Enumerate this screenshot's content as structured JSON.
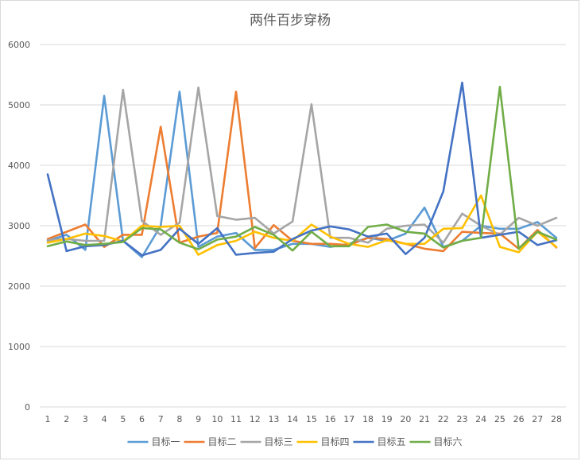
{
  "chart_data": {
    "type": "line",
    "title": "两件百步穿杨",
    "xlabel": "",
    "ylabel": "",
    "x": [
      1,
      2,
      3,
      4,
      5,
      6,
      7,
      8,
      9,
      10,
      11,
      12,
      13,
      14,
      15,
      16,
      17,
      18,
      19,
      20,
      21,
      22,
      23,
      24,
      25,
      26,
      27,
      28
    ],
    "ylim": [
      0,
      6000
    ],
    "yticks": [
      0,
      1000,
      2000,
      3000,
      4000,
      5000,
      6000
    ],
    "grid": true,
    "legend": "bottom",
    "series": [
      {
        "name": "目标一",
        "color": "#5B9BD5",
        "values": [
          2750,
          2850,
          2600,
          5150,
          2750,
          2480,
          3000,
          5220,
          2650,
          2820,
          2880,
          2600,
          2600,
          2700,
          2700,
          2650,
          2700,
          2800,
          2750,
          2870,
          3300,
          2650,
          2750,
          3000,
          2950,
          2950,
          3060,
          2800
        ]
      },
      {
        "name": "目标二",
        "color": "#ED7D31",
        "values": [
          2780,
          2900,
          3020,
          2650,
          2850,
          2850,
          4640,
          2720,
          2820,
          2880,
          5220,
          2630,
          3010,
          2750,
          2700,
          2700,
          2680,
          2800,
          2780,
          2700,
          2620,
          2580,
          2900,
          2880,
          2870,
          2620,
          2930,
          2640
        ]
      },
      {
        "name": "目标三",
        "color": "#A5A5A5",
        "values": [
          2760,
          2780,
          2750,
          2750,
          5250,
          3080,
          2850,
          3050,
          5290,
          3160,
          3100,
          3130,
          2870,
          3070,
          5010,
          2800,
          2800,
          2720,
          2950,
          3000,
          3020,
          2720,
          3200,
          3000,
          2850,
          3130,
          3000,
          3130
        ]
      },
      {
        "name": "目标四",
        "color": "#FFC000",
        "values": [
          2720,
          2780,
          2870,
          2830,
          2740,
          3000,
          2980,
          3000,
          2520,
          2680,
          2750,
          2900,
          2800,
          2750,
          3020,
          2820,
          2700,
          2650,
          2760,
          2700,
          2700,
          2950,
          2960,
          3500,
          2650,
          2560,
          2900,
          2650
        ]
      },
      {
        "name": "目标五",
        "color": "#4472C4",
        "values": [
          3850,
          2580,
          2660,
          2680,
          2750,
          2510,
          2600,
          2950,
          2700,
          2960,
          2520,
          2550,
          2570,
          2780,
          2920,
          2990,
          2940,
          2820,
          2870,
          2530,
          2800,
          3570,
          5370,
          2800,
          2850,
          2900,
          2680,
          2760
        ]
      },
      {
        "name": "目标六",
        "color": "#70AD47",
        "values": [
          2660,
          2740,
          2680,
          2700,
          2730,
          2960,
          2940,
          2720,
          2610,
          2770,
          2820,
          2980,
          2850,
          2590,
          2900,
          2660,
          2660,
          2980,
          3020,
          2900,
          2870,
          2640,
          2750,
          2800,
          5300,
          2620,
          2900,
          2770
        ]
      }
    ]
  }
}
